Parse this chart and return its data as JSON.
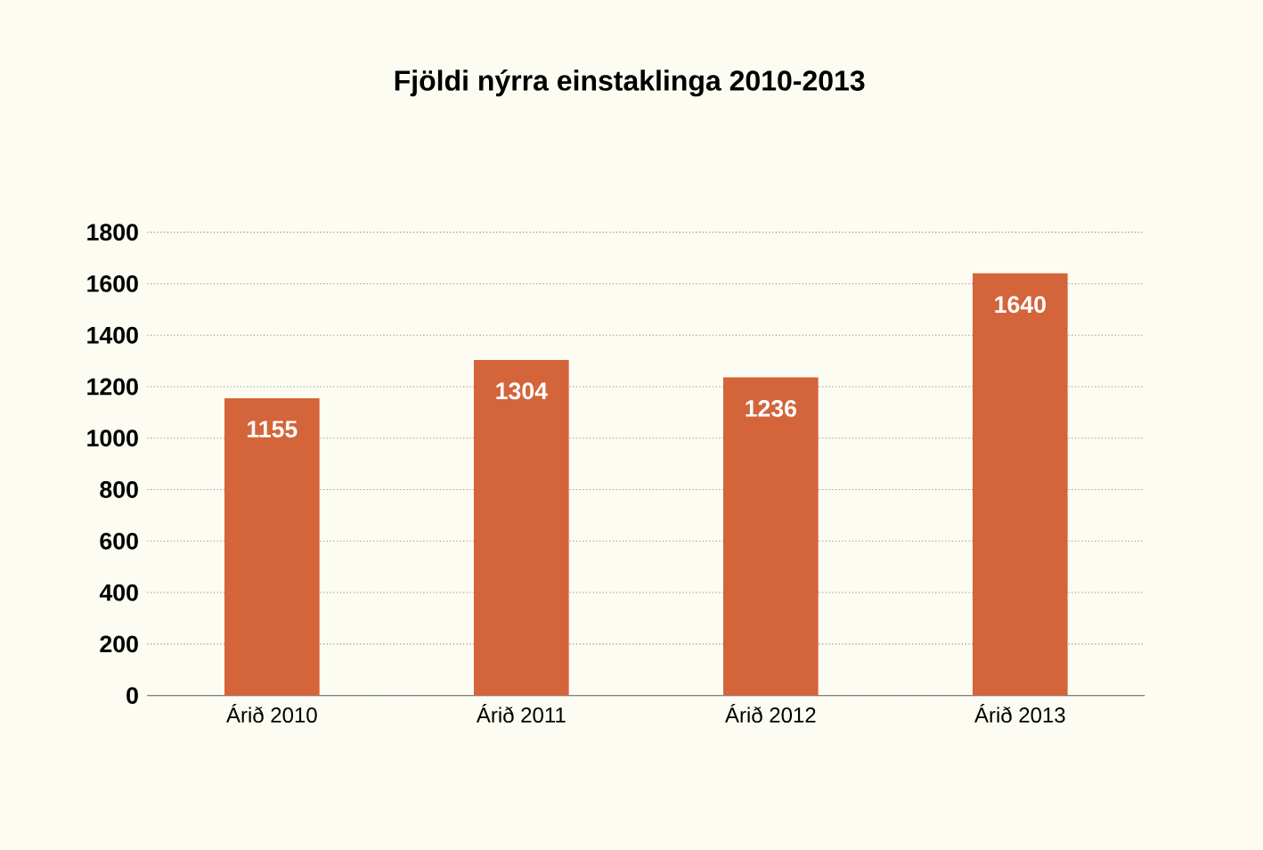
{
  "chart_data": {
    "type": "bar",
    "title": "Fjöldi nýrra einstaklinga 2010-2013",
    "categories": [
      "Árið 2010",
      "Árið 2011",
      "Árið 2012",
      "Árið 2013"
    ],
    "values": [
      1155,
      1304,
      1236,
      1640
    ],
    "color": "#d4643a",
    "ylim": [
      0,
      1800
    ],
    "yticks": [
      0,
      200,
      400,
      600,
      800,
      1000,
      1200,
      1400,
      1600,
      1800
    ],
    "grid": "y",
    "data_labels": true
  }
}
